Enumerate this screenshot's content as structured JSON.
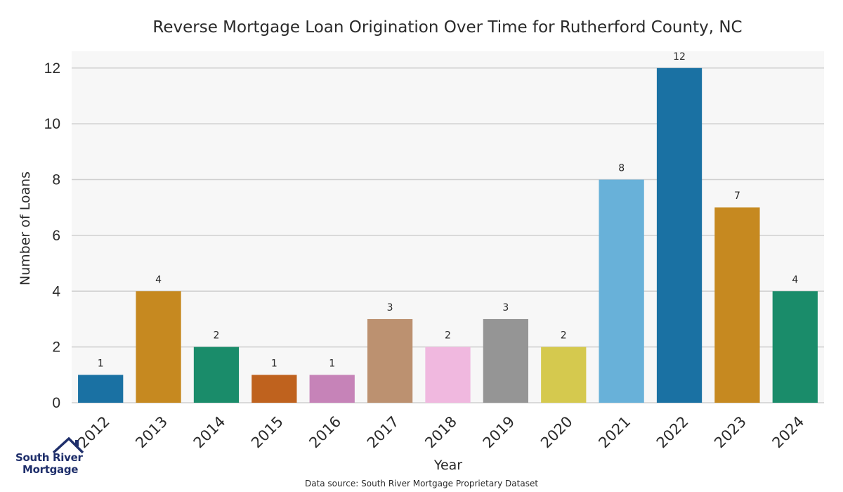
{
  "chart_data": {
    "type": "bar",
    "title": "Reverse Mortgage Loan Origination Over Time for Rutherford County, NC",
    "xlabel": "Year",
    "ylabel": "Number of Loans",
    "ylim": [
      0,
      12.6
    ],
    "y_ticks": [
      "0",
      "2",
      "4",
      "6",
      "8",
      "10",
      "12"
    ],
    "grid": true,
    "categories": [
      "2012",
      "2013",
      "2014",
      "2015",
      "2016",
      "2017",
      "2018",
      "2019",
      "2020",
      "2021",
      "2022",
      "2023",
      "2024"
    ],
    "values": [
      1,
      4,
      2,
      1,
      1,
      3,
      2,
      3,
      2,
      8,
      12,
      7,
      4
    ],
    "data_labels": [
      "1",
      "4",
      "2",
      "1",
      "1",
      "3",
      "2",
      "3",
      "2",
      "8",
      "12",
      "7",
      "4"
    ],
    "colors": [
      "#1a71a3",
      "#c68920",
      "#1a8c6a",
      "#bf621e",
      "#c683b8",
      "#bc9170",
      "#f0b8df",
      "#959595",
      "#d5c94e",
      "#68b1d9",
      "#1a71a3",
      "#c68920",
      "#1a8c6a"
    ],
    "source": "Data source: South River Mortgage Proprietary Dataset"
  },
  "logo": {
    "line1": "South River",
    "line2": "Mortgage",
    "color": "#1f2f6b"
  }
}
